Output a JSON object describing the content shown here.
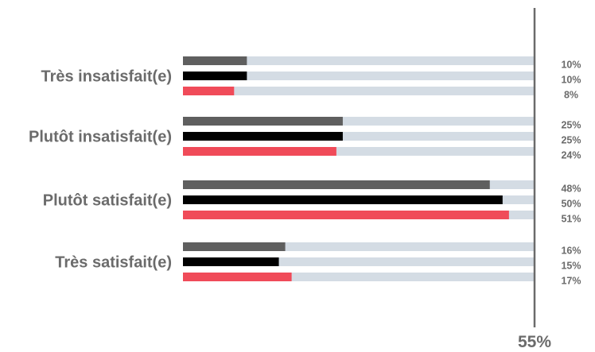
{
  "chart_data": {
    "type": "bar",
    "orientation": "horizontal",
    "categories": [
      "Très insatisfait(e)",
      "Plutôt insatisfait(e)",
      "Plutôt satisfait(e)",
      "Très satisfait(e)"
    ],
    "series": [
      {
        "values": [
          10,
          25,
          48,
          16
        ],
        "color": "#5f5f5f"
      },
      {
        "values": [
          10,
          25,
          50,
          15
        ],
        "color": "#000000"
      },
      {
        "values": [
          8,
          24,
          51,
          17
        ],
        "color": "#f04b59"
      }
    ],
    "value_labels": [
      [
        "10%",
        "10%",
        "8%"
      ],
      [
        "25%",
        "25%",
        "24%"
      ],
      [
        "48%",
        "50%",
        "51%"
      ],
      [
        "16%",
        "15%",
        "17%"
      ]
    ],
    "track_color": "#d4dce4",
    "axis_max": 55,
    "axis_max_label": "55%",
    "xlim": [
      0,
      55
    ],
    "grid": false,
    "legend": "none",
    "title": "",
    "xlabel": "",
    "ylabel": ""
  }
}
